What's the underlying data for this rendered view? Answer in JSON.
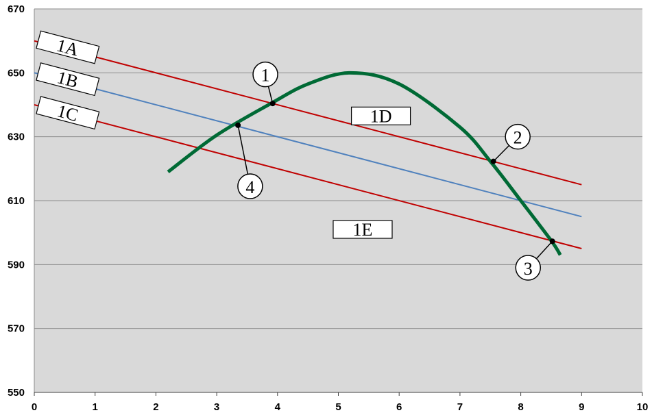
{
  "chart_data": {
    "type": "line",
    "title": "",
    "xlabel": "",
    "ylabel": "",
    "xlim": [
      0,
      10
    ],
    "ylim": [
      550,
      670
    ],
    "xticks": [
      "0",
      "1",
      "2",
      "3",
      "4",
      "5",
      "6",
      "7",
      "8",
      "9",
      "10"
    ],
    "yticks": [
      "550",
      "570",
      "590",
      "610",
      "630",
      "650",
      "670"
    ],
    "grid": "horizontal",
    "colors": {
      "background": "#d9d9d9",
      "grid": "#8c8c8c",
      "red": "#c00000",
      "blue": "#4f81bd",
      "green": "#006a35"
    },
    "series": [
      {
        "key": "1A",
        "color": "#c00000",
        "points": [
          [
            0,
            660
          ],
          [
            9,
            615
          ]
        ]
      },
      {
        "key": "1B",
        "color": "#4f81bd",
        "points": [
          [
            0,
            650
          ],
          [
            9,
            605
          ]
        ]
      },
      {
        "key": "1C",
        "color": "#c00000",
        "points": [
          [
            0,
            640
          ],
          [
            9,
            595
          ]
        ]
      },
      {
        "key": "curve",
        "color": "#006a35",
        "points": [
          [
            2.2,
            619
          ],
          [
            3.0,
            630.5
          ],
          [
            3.9,
            640.5
          ],
          [
            4.5,
            646.5
          ],
          [
            5.2,
            650
          ],
          [
            6.0,
            646.5
          ],
          [
            7.0,
            633
          ],
          [
            7.5,
            622.3
          ],
          [
            8.0,
            610
          ],
          [
            8.5,
            597.5
          ],
          [
            8.65,
            593
          ]
        ]
      }
    ],
    "line_labels": [
      {
        "text": "1A",
        "x": 0.55,
        "y": 658
      },
      {
        "text": "1B",
        "x": 0.55,
        "y": 648
      },
      {
        "text": "1C",
        "x": 0.55,
        "y": 637.5
      }
    ],
    "region_labels": [
      {
        "text": "1D",
        "x": 5.7,
        "y": 636.5
      },
      {
        "text": "1E",
        "x": 5.4,
        "y": 601
      }
    ],
    "points": [
      {
        "text": "1",
        "x": 3.92,
        "y": 640.4,
        "lx": 3.8,
        "ly": 649.5
      },
      {
        "text": "2",
        "x": 7.55,
        "y": 622.3,
        "lx": 7.95,
        "ly": 630
      },
      {
        "text": "3",
        "x": 8.52,
        "y": 597.3,
        "lx": 8.12,
        "ly": 589
      },
      {
        "text": "4",
        "x": 3.35,
        "y": 633.6,
        "lx": 3.55,
        "ly": 614.5
      }
    ]
  }
}
